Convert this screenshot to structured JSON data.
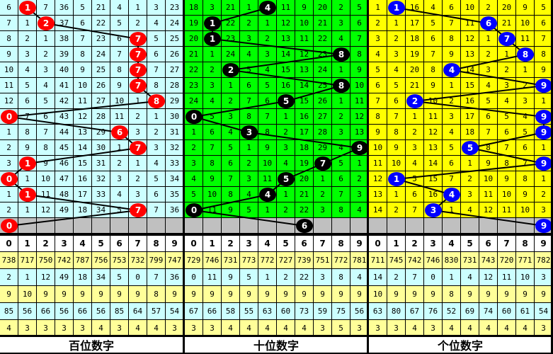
{
  "chart_data": {
    "type": "table",
    "column_headers": [
      "0",
      "1",
      "2",
      "3",
      "4",
      "5",
      "6",
      "7",
      "8",
      "9"
    ],
    "panels": [
      {
        "label": "百位数字",
        "cell_color": "#ccffff",
        "ball_color": "#ff0000",
        "draws": [
          1,
          2,
          7,
          7,
          7,
          7,
          8,
          0,
          6,
          7,
          1,
          0,
          1,
          7
        ],
        "next": 0,
        "rows": [
          [
            6,
            1,
            7,
            36,
            5,
            21,
            4,
            1,
            3,
            23
          ],
          [
            7,
            1,
            2,
            37,
            6,
            22,
            5,
            2,
            4,
            24
          ],
          [
            8,
            2,
            1,
            38,
            7,
            23,
            6,
            7,
            5,
            25
          ],
          [
            9,
            3,
            2,
            39,
            8,
            24,
            7,
            7,
            6,
            26
          ],
          [
            10,
            4,
            3,
            40,
            9,
            25,
            8,
            7,
            7,
            27
          ],
          [
            11,
            5,
            4,
            41,
            10,
            26,
            9,
            7,
            8,
            28
          ],
          [
            12,
            6,
            5,
            42,
            11,
            27,
            10,
            1,
            8,
            29
          ],
          [
            0,
            7,
            6,
            43,
            12,
            28,
            11,
            2,
            1,
            30
          ],
          [
            1,
            8,
            7,
            44,
            13,
            29,
            6,
            3,
            2,
            31
          ],
          [
            2,
            9,
            8,
            45,
            14,
            30,
            1,
            7,
            3,
            32
          ],
          [
            3,
            1,
            9,
            46,
            15,
            31,
            2,
            1,
            4,
            33
          ],
          [
            0,
            1,
            10,
            47,
            16,
            32,
            3,
            2,
            5,
            34
          ],
          [
            1,
            1,
            11,
            48,
            17,
            33,
            4,
            3,
            6,
            35
          ],
          [
            2,
            1,
            12,
            49,
            18,
            34,
            5,
            7,
            7,
            36
          ]
        ],
        "stats": [
          [
            738,
            717,
            750,
            742,
            787,
            756,
            753,
            732,
            799,
            747
          ],
          [
            2,
            1,
            12,
            49,
            18,
            34,
            5,
            0,
            7,
            36
          ],
          [
            9,
            10,
            9,
            9,
            9,
            9,
            9,
            9,
            8,
            9
          ],
          [
            85,
            56,
            66,
            56,
            66,
            56,
            85,
            64,
            57,
            54
          ],
          [
            4,
            3,
            3,
            3,
            3,
            4,
            3,
            4,
            4,
            3
          ]
        ]
      },
      {
        "label": "十位数字",
        "cell_color": "#00ff00",
        "ball_color": "#000000",
        "draws": [
          4,
          1,
          1,
          8,
          2,
          8,
          5,
          0,
          3,
          9,
          7,
          5,
          4,
          0
        ],
        "next": 6,
        "rows": [
          [
            18,
            3,
            21,
            1,
            4,
            11,
            9,
            20,
            2,
            5
          ],
          [
            19,
            1,
            22,
            2,
            1,
            12,
            10,
            21,
            3,
            6
          ],
          [
            20,
            1,
            23,
            3,
            2,
            13,
            11,
            22,
            4,
            7
          ],
          [
            21,
            1,
            24,
            4,
            3,
            14,
            12,
            23,
            8,
            8
          ],
          [
            22,
            2,
            2,
            5,
            4,
            15,
            13,
            24,
            1,
            9
          ],
          [
            23,
            3,
            1,
            6,
            5,
            16,
            14,
            25,
            8,
            10
          ],
          [
            24,
            4,
            2,
            7,
            6,
            5,
            15,
            26,
            1,
            11
          ],
          [
            0,
            5,
            3,
            8,
            7,
            1,
            16,
            27,
            2,
            12
          ],
          [
            1,
            6,
            4,
            3,
            8,
            2,
            17,
            28,
            3,
            13
          ],
          [
            2,
            7,
            5,
            1,
            9,
            3,
            18,
            29,
            4,
            9
          ],
          [
            3,
            8,
            6,
            2,
            10,
            4,
            19,
            7,
            5,
            1
          ],
          [
            4,
            9,
            7,
            3,
            11,
            5,
            20,
            1,
            6,
            2
          ],
          [
            5,
            10,
            8,
            4,
            4,
            1,
            21,
            2,
            7,
            3
          ],
          [
            0,
            11,
            9,
            5,
            1,
            2,
            22,
            3,
            8,
            4
          ]
        ],
        "stats": [
          [
            729,
            746,
            731,
            773,
            772,
            727,
            739,
            751,
            772,
            781
          ],
          [
            0,
            11,
            9,
            5,
            1,
            2,
            22,
            3,
            8,
            4
          ],
          [
            9,
            9,
            9,
            9,
            9,
            9,
            9,
            9,
            9,
            9
          ],
          [
            67,
            66,
            58,
            55,
            63,
            60,
            73,
            59,
            75,
            56
          ],
          [
            3,
            3,
            4,
            4,
            4,
            4,
            4,
            3,
            5,
            3
          ]
        ]
      },
      {
        "label": "个位数字",
        "cell_color": "#ffff00",
        "ball_color": "#0000ff",
        "draws": [
          1,
          6,
          7,
          8,
          4,
          9,
          2,
          9,
          9,
          5,
          9,
          1,
          4,
          3
        ],
        "next": 9,
        "rows": [
          [
            1,
            1,
            16,
            4,
            6,
            10,
            2,
            20,
            9,
            5
          ],
          [
            2,
            1,
            17,
            5,
            7,
            11,
            6,
            21,
            10,
            6
          ],
          [
            3,
            2,
            18,
            6,
            8,
            12,
            1,
            7,
            11,
            7
          ],
          [
            4,
            3,
            19,
            7,
            9,
            13,
            2,
            1,
            8,
            8
          ],
          [
            5,
            4,
            20,
            8,
            4,
            14,
            3,
            2,
            1,
            9
          ],
          [
            6,
            5,
            21,
            9,
            1,
            15,
            4,
            3,
            2,
            9
          ],
          [
            7,
            6,
            2,
            10,
            2,
            16,
            5,
            4,
            3,
            1
          ],
          [
            8,
            7,
            1,
            11,
            3,
            17,
            6,
            5,
            4,
            9
          ],
          [
            9,
            8,
            2,
            12,
            4,
            18,
            7,
            6,
            5,
            9
          ],
          [
            10,
            9,
            3,
            13,
            5,
            5,
            8,
            7,
            6,
            1
          ],
          [
            11,
            10,
            4,
            14,
            6,
            1,
            9,
            8,
            7,
            9
          ],
          [
            12,
            1,
            5,
            15,
            7,
            2,
            10,
            9,
            8,
            1
          ],
          [
            13,
            1,
            6,
            16,
            4,
            3,
            11,
            10,
            9,
            2
          ],
          [
            14,
            2,
            7,
            3,
            1,
            4,
            12,
            11,
            10,
            3
          ]
        ],
        "stats": [
          [
            711,
            745,
            742,
            746,
            830,
            731,
            743,
            720,
            771,
            782
          ],
          [
            14,
            2,
            7,
            0,
            1,
            4,
            12,
            11,
            10,
            3
          ],
          [
            10,
            9,
            9,
            9,
            8,
            9,
            9,
            9,
            9,
            9
          ],
          [
            63,
            80,
            67,
            76,
            52,
            69,
            74,
            60,
            61,
            54
          ],
          [
            3,
            3,
            4,
            3,
            4,
            4,
            4,
            4,
            4,
            3
          ]
        ]
      }
    ],
    "stats_row_colors": [
      "#ffff99",
      "#ccffff",
      "#ffff99",
      "#ccffff",
      "#ffff99"
    ],
    "gray_color": "#c0c0c0"
  }
}
